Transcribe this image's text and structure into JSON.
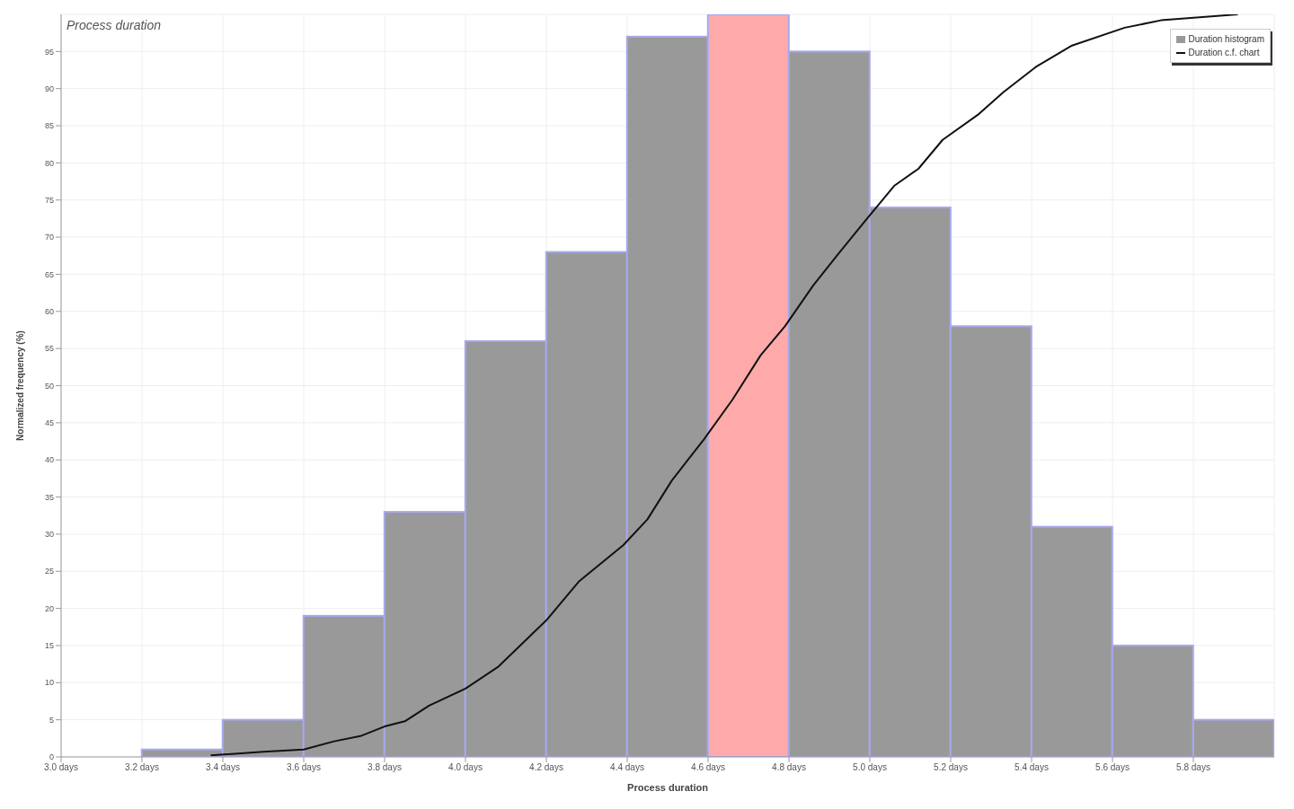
{
  "chart_data": {
    "type": "histogram",
    "title": "Process duration",
    "xlabel": "Process duration",
    "ylabel": "Normalized frequency (%)",
    "bins": [
      3.2,
      3.4,
      3.6,
      3.8,
      4.0,
      4.2,
      4.4,
      4.6,
      4.8,
      5.0,
      5.2,
      5.4,
      5.6,
      5.8,
      6.0
    ],
    "series": [
      {
        "name": "Duration histogram",
        "values": [
          1,
          5,
          19,
          33,
          56,
          68,
          97,
          100,
          95,
          74,
          58,
          31,
          15,
          5
        ],
        "colors": [
          "#999999",
          "#999999",
          "#999999",
          "#999999",
          "#999999",
          "#999999",
          "#999999",
          "#ffaaaa",
          "#999999",
          "#999999",
          "#999999",
          "#999999",
          "#999999",
          "#999999"
        ]
      },
      {
        "type": "line",
        "name": "Duration c.f. chart",
        "color": "#111111",
        "x": [
          3.37,
          3.5,
          3.6,
          3.675,
          3.74,
          3.8,
          3.85,
          3.91,
          4.0,
          4.08,
          4.2,
          4.28,
          4.39,
          4.45,
          4.51,
          4.59,
          4.66,
          4.73,
          4.79,
          4.86,
          4.92,
          4.99,
          5.06,
          5.12,
          5.18,
          5.27,
          5.33,
          5.41,
          5.5,
          5.63,
          5.72,
          5.91
        ],
        "values": [
          0.2,
          0.7,
          1.0,
          2.1,
          2.8,
          4.1,
          4.8,
          6.9,
          9.2,
          12.1,
          18.4,
          23.6,
          28.5,
          32,
          37.2,
          42.8,
          48.1,
          54.1,
          58,
          63.5,
          67.6,
          72.3,
          76.9,
          79.2,
          83.1,
          86.6,
          89.5,
          92.9,
          95.8,
          98.2,
          99.2,
          100
        ]
      }
    ],
    "xlim": [
      3.0,
      6.0
    ],
    "xticks": [
      {
        "value": 3.0,
        "label": "3.0 days"
      },
      {
        "value": 3.2,
        "label": "3.2 days"
      },
      {
        "value": 3.4,
        "label": "3.4 days"
      },
      {
        "value": 3.6,
        "label": "3.6 days"
      },
      {
        "value": 3.8,
        "label": "3.8 days"
      },
      {
        "value": 4.0,
        "label": "4.0 days"
      },
      {
        "value": 4.2,
        "label": "4.2 days"
      },
      {
        "value": 4.4,
        "label": "4.4 days"
      },
      {
        "value": 4.6,
        "label": "4.6 days"
      },
      {
        "value": 4.8,
        "label": "4.8 days"
      },
      {
        "value": 5.0,
        "label": "5.0 days"
      },
      {
        "value": 5.2,
        "label": "5.2 days"
      },
      {
        "value": 5.4,
        "label": "5.4 days"
      },
      {
        "value": 5.6,
        "label": "5.6 days"
      },
      {
        "value": 5.8,
        "label": "5.8 days"
      }
    ],
    "ylim": [
      0,
      100
    ],
    "yticks": [
      0,
      5,
      10,
      15,
      20,
      25,
      30,
      35,
      40,
      45,
      50,
      55,
      60,
      65,
      70,
      75,
      80,
      85,
      90,
      95
    ],
    "grid": true,
    "legend": "top right",
    "marker": "none",
    "line_style": "solid"
  }
}
